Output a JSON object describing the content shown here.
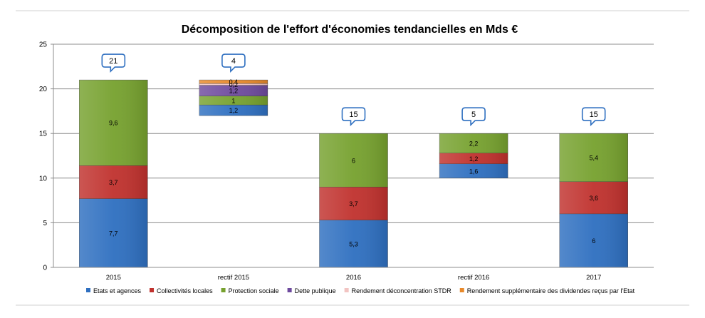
{
  "chart_data": {
    "type": "bar",
    "stacked": true,
    "title": "Décomposition de l'effort d'économies tendancielles en Mds €",
    "xlabel": "",
    "ylabel": "",
    "ylim": [
      0,
      25
    ],
    "yticks": [
      0,
      5,
      10,
      15,
      20,
      25
    ],
    "grid": true,
    "legend_position": "bottom",
    "categories": [
      "2015",
      "rectif 2015",
      "2016",
      "rectif 2016",
      "2017"
    ],
    "bases": [
      0,
      17,
      0,
      10,
      0
    ],
    "totals": [
      "21",
      "4",
      "15",
      "5",
      "15"
    ],
    "series": [
      {
        "name": "Etats et agences",
        "color": "#2e6fc0",
        "values": [
          7.7,
          1.2,
          5.3,
          1.6,
          6
        ],
        "labels": [
          "7,7",
          "1,2",
          "5,3",
          "1,6",
          "6"
        ]
      },
      {
        "name": "Collectivités locales",
        "color": "#c0312d",
        "values": [
          3.7,
          0,
          3.7,
          1.2,
          3.6
        ],
        "labels": [
          "3,7",
          "",
          "3,7",
          "1,2",
          "3,6"
        ]
      },
      {
        "name": "Protection sociale",
        "color": "#76a12e",
        "values": [
          9.6,
          1,
          6,
          2.2,
          5.4
        ],
        "labels": [
          "9,6",
          "1",
          "6",
          "2,2",
          "5,4"
        ]
      },
      {
        "name": "Dette publique",
        "color": "#6e4a9e",
        "values": [
          0,
          1.2,
          0,
          0,
          0
        ],
        "labels": [
          "",
          "1,2",
          "",
          "",
          ""
        ]
      },
      {
        "name": "Rendement déconcentration STDR",
        "color": "#f2c4c2",
        "values": [
          0,
          0.2,
          0,
          0,
          0
        ],
        "labels": [
          "",
          "0,2",
          "",
          "",
          ""
        ]
      },
      {
        "name": "Rendement supplémentaire  des dividendes reçus par l'Etat",
        "color": "#e8892a",
        "values": [
          0,
          0.4,
          0,
          0,
          0
        ],
        "labels": [
          "",
          "0,4",
          "",
          "",
          ""
        ]
      }
    ]
  }
}
